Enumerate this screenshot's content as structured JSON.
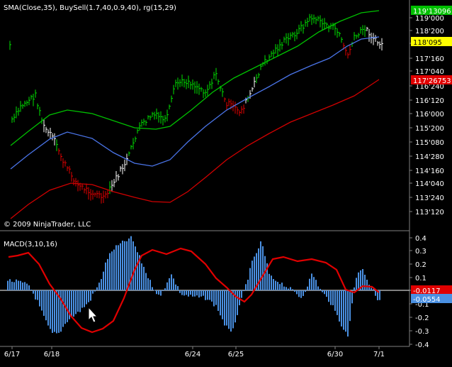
{
  "price_panel": {
    "indicator_legend": "SMA(Close,35), BuySell(1.7,40,0.9,40), rg(15,29)",
    "copyright": "© 2009 NinjaTrader, LLC",
    "y_ticks": [
      "119'000",
      "118'200",
      "117'280",
      "117'160",
      "117'040",
      "116'240",
      "116'120",
      "116'000",
      "115'200",
      "115'080",
      "114'280",
      "114'160",
      "114'040",
      "113'240",
      "113'120"
    ],
    "last_labels": [
      {
        "text": "119'13096",
        "color": "#00c000",
        "text_color": "#ffffff"
      },
      {
        "text": "118'095",
        "color": "#ffff00",
        "text_color": "#000000"
      },
      {
        "text": "117'26753",
        "color": "#e00000",
        "text_color": "#ffffff"
      }
    ]
  },
  "macd_panel": {
    "indicator_legend": "MACD(3,10,16)",
    "y_ticks": [
      "0.4",
      "0.3",
      "0.2",
      "0.1",
      "0",
      "-0.1",
      "-0.2",
      "-0.3",
      "-0.4"
    ],
    "last_labels": [
      {
        "text": "-0.0117",
        "color": "#e00000",
        "text_color": "#ffffff"
      },
      {
        "text": "-0.0554",
        "color": "#4a90e2",
        "text_color": "#ffffff"
      }
    ]
  },
  "x_axis": {
    "ticks": [
      "6/17",
      "6/18",
      "6/24",
      "6/25",
      "6/30",
      "7/1"
    ]
  },
  "colors": {
    "up_bar": "#00e000",
    "down_bar": "#e00000",
    "neutral_bar": "#ffffff",
    "sma": "#4a74e8",
    "upper_band": "#00c000",
    "lower_band": "#d00000",
    "macd_line": "#e00000",
    "histogram": "#4a90e2"
  },
  "cursor": "arrow-pointer-icon"
}
